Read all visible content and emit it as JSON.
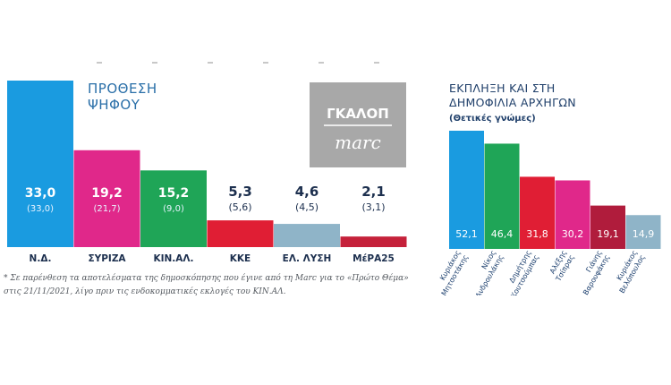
{
  "left": {
    "title_lines": [
      "ΠΡΟΘΕΣΗ",
      "ΨΗΦΟΥ"
    ],
    "logo_top": "ΓΚΑΛΟΠ",
    "logo_bottom": "marc",
    "chart_data": {
      "type": "bar",
      "title": "ΠΡΟΘΕΣΗ ΨΗΦΟΥ",
      "categories": [
        "Ν.Δ.",
        "ΣΥΡΙΖΑ",
        "ΚΙΝ.ΑΛ.",
        "ΚΚΕ",
        "ΕΛ. ΛΥΣΗ",
        "ΜέΡΑ25"
      ],
      "values": [
        33.0,
        19.2,
        15.2,
        5.3,
        4.6,
        2.1
      ],
      "value_labels": [
        "33,0",
        "19,2",
        "15,2",
        "5,3",
        "4,6",
        "2,1"
      ],
      "previous_labels": [
        "(33,0)",
        "(21,7)",
        "(9,0)",
        "(5,6)",
        "(4,5)",
        "(3,1)"
      ],
      "colors": [
        "#1a9be0",
        "#e0288a",
        "#1fa557",
        "#e01e34",
        "#8fb4c8",
        "#c5213a"
      ],
      "ylim": [
        0,
        33
      ]
    },
    "footnote": "* Σε παρένθεση τα αποτελέσματα της δημοσκόπησης που έγινε από τη Marc για το «Πρώτο Θέμα» στις 21/11/2021, λίγο πριν τις ενδοκομματικές εκλογές του ΚΙΝ.ΑΛ."
  },
  "right": {
    "title_lines": [
      "ΕΚΠΛΗΞΗ ΚΑΙ ΣΤΗ",
      "ΔΗΜΟΦΙΛΙΑ ΑΡΧΗΓΩΝ"
    ],
    "subtitle": "(Θετικές γνώμες)",
    "chart_data": {
      "type": "bar",
      "title": "ΕΚΠΛΗΞΗ ΚΑΙ ΣΤΗ ΔΗΜΟΦΙΛΙΑ ΑΡΧΗΓΩΝ",
      "subtitle": "(Θετικές γνώμες)",
      "categories": [
        [
          "Κυριάκος",
          "Μητσοτάκης"
        ],
        [
          "Νίκος",
          "Ανδρουλάκης"
        ],
        [
          "Δημήτρης",
          "Κουτσούμπας"
        ],
        [
          "Αλέξης",
          "Τσίπρας"
        ],
        [
          "Γιάνης",
          "Βαρουφάκης"
        ],
        [
          "Κυριάκος",
          "Βελόπουλος"
        ]
      ],
      "values": [
        52.1,
        46.4,
        31.8,
        30.2,
        19.1,
        14.9
      ],
      "value_labels": [
        "52,1",
        "46,4",
        "31,8",
        "30,2",
        "19,1",
        "14,9"
      ],
      "colors": [
        "#1a9be0",
        "#1fa557",
        "#e01e34",
        "#e0288a",
        "#b01c3c",
        "#8fb4c8"
      ],
      "ylim": [
        0,
        52.1
      ]
    }
  }
}
